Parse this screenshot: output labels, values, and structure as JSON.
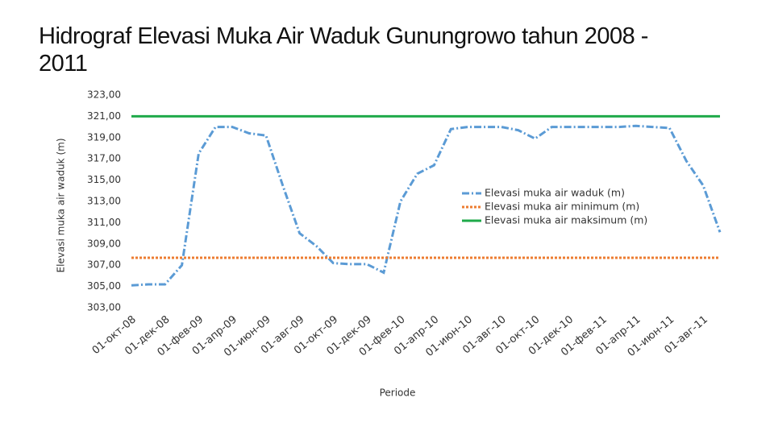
{
  "chart_data": {
    "type": "line",
    "title": "Hidrograf Elevasi Muka Air Waduk Gunungrowo tahun 2008 - 2011",
    "y_label": "Elevasi muka air waduk (m)",
    "x_label": "Periode",
    "categories": [
      "01-окт-08",
      null,
      "01-дек-08",
      null,
      "01-фев-09",
      null,
      "01-апр-09",
      null,
      "01-июн-09",
      null,
      "01-авг-09",
      null,
      "01-окт-09",
      null,
      "01-дек-09",
      null,
      "01-фев-10",
      null,
      "01-апр-10",
      null,
      "01-июн-10",
      null,
      "01-авг-10",
      null,
      "01-окт-10",
      null,
      "01-дек-10",
      null,
      "01-фев-11",
      null,
      "01-апр-11",
      null,
      "01-июн-11",
      null,
      "01-авг-11",
      null
    ],
    "series": [
      {
        "name": "Elevasi muka air waduk (m)",
        "color": "#5b9bd5",
        "values": [
          305.1,
          305.2,
          305.2,
          307.0,
          317.5,
          320.0,
          320.0,
          319.4,
          319.2,
          314.5,
          310.0,
          308.8,
          307.2,
          307.1,
          307.1,
          306.3,
          313.0,
          315.6,
          316.4,
          319.8,
          320.0,
          320.0,
          320.0,
          319.7,
          318.9,
          320.0,
          320.0,
          320.0,
          320.0,
          320.0,
          320.1,
          320.0,
          319.9,
          316.8,
          314.5,
          310.1
        ]
      },
      {
        "name": "Elevasi muka air minimum (m)",
        "color": "#ed7d31",
        "values": [
          307.7,
          307.7,
          307.7,
          307.7,
          307.7,
          307.7,
          307.7,
          307.7,
          307.7,
          307.7,
          307.7,
          307.7,
          307.7,
          307.7,
          307.7,
          307.7,
          307.7,
          307.7,
          307.7,
          307.7,
          307.7,
          307.7,
          307.7,
          307.7,
          307.7,
          307.7,
          307.7,
          307.7,
          307.7,
          307.7,
          307.7,
          307.7,
          307.7,
          307.7,
          307.7,
          307.7
        ]
      },
      {
        "name": "Elevasi muka air maksimum (m)",
        "color": "#1faa4a",
        "values": [
          321.0,
          321.0,
          321.0,
          321.0,
          321.0,
          321.0,
          321.0,
          321.0,
          321.0,
          321.0,
          321.0,
          321.0,
          321.0,
          321.0,
          321.0,
          321.0,
          321.0,
          321.0,
          321.0,
          321.0,
          321.0,
          321.0,
          321.0,
          321.0,
          321.0,
          321.0,
          321.0,
          321.0,
          321.0,
          321.0,
          321.0,
          321.0,
          321.0,
          321.0,
          321.0,
          321.0
        ]
      }
    ],
    "ylim": [
      303,
      323
    ],
    "yticks": [
      {
        "value": 303,
        "label": "303,00"
      },
      {
        "value": 305,
        "label": "305,00"
      },
      {
        "value": 307,
        "label": "307,00"
      },
      {
        "value": 309,
        "label": "309,00"
      },
      {
        "value": 311,
        "label": "311,00"
      },
      {
        "value": 313,
        "label": "313,00"
      },
      {
        "value": 315,
        "label": "315,00"
      },
      {
        "value": 317,
        "label": "317,00"
      },
      {
        "value": 319,
        "label": "319,00"
      },
      {
        "value": 321,
        "label": "321,00"
      },
      {
        "value": 323,
        "label": "323,00"
      }
    ],
    "grid": false,
    "legend": "right"
  }
}
